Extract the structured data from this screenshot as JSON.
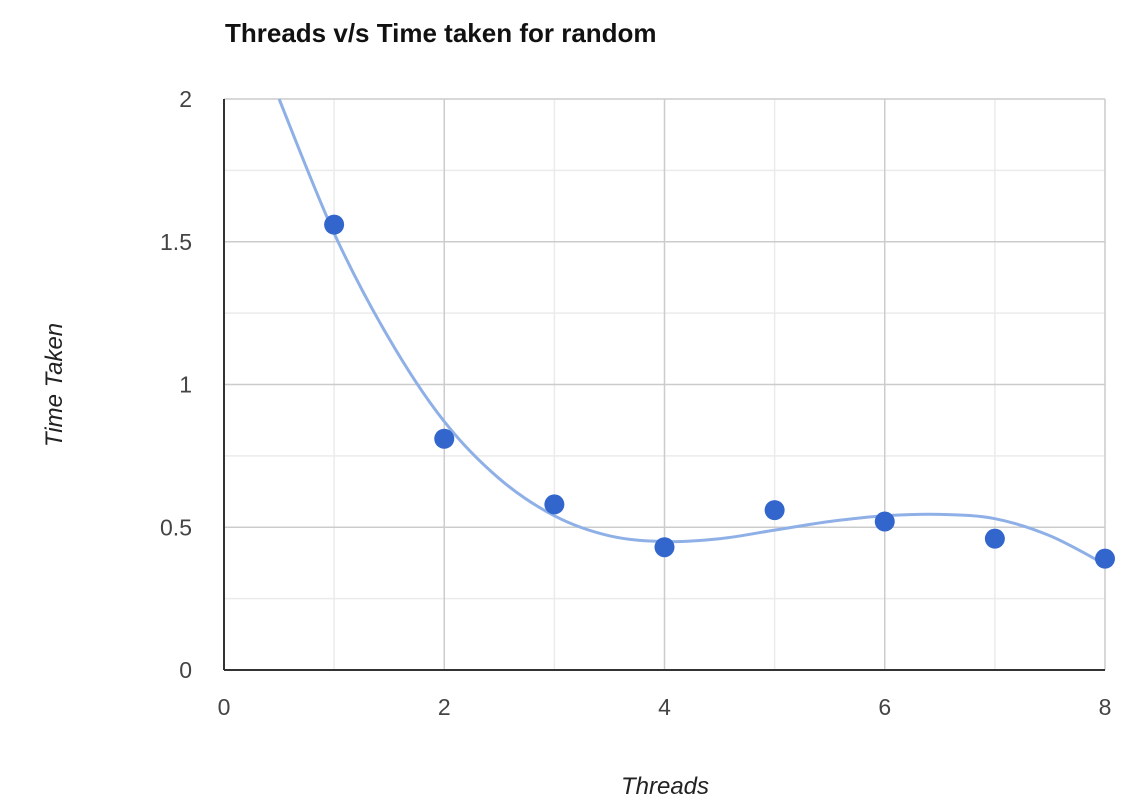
{
  "chart_data": {
    "type": "scatter",
    "title": "Threads v/s Time taken for random",
    "xlabel": "Threads",
    "ylabel": "Time Taken",
    "xlim": [
      0,
      8
    ],
    "ylim": [
      0,
      2
    ],
    "x_ticks": [
      "0",
      "2",
      "4",
      "6",
      "8"
    ],
    "y_ticks": [
      "0",
      "0.5",
      "1",
      "1.5",
      "2"
    ],
    "grid": true,
    "trendline": "smooth polynomial",
    "series": [
      {
        "x": [
          1,
          2,
          3,
          4,
          5,
          6,
          7,
          8
        ],
        "values": [
          1.56,
          0.81,
          0.58,
          0.43,
          0.56,
          0.52,
          0.46,
          0.39
        ]
      }
    ],
    "trend_x": [
      0.5,
      1,
      1.5,
      2,
      2.5,
      3,
      3.5,
      4,
      4.5,
      5,
      5.5,
      6,
      6.5,
      7,
      7.5,
      8
    ],
    "trend_y": [
      2.0,
      1.53,
      1.16,
      0.87,
      0.67,
      0.54,
      0.47,
      0.45,
      0.46,
      0.49,
      0.52,
      0.54,
      0.545,
      0.53,
      0.47,
      0.37
    ],
    "colors": {
      "points": "#3366cc",
      "trendline": "#8fb0e6",
      "grid_major": "#cccccc",
      "grid_minor": "#ebebeb",
      "axis": "#333333"
    }
  }
}
